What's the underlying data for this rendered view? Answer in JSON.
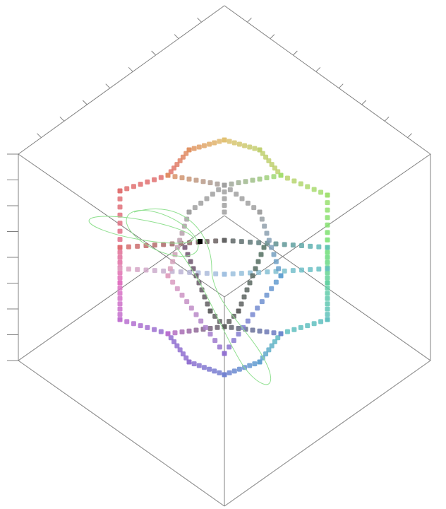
{
  "scene": {
    "kind": "3d-color-point-cloud",
    "background": "#ffffff",
    "frame_color": "#808080",
    "trajectory_color": "#90e090",
    "marker_color": "#000000",
    "icons": {
      "marker": "black-square-marker",
      "trajectory": "green-loop-curve"
    },
    "points": {
      "outer_ring_colors": [
        "#e07070",
        "#e09060",
        "#e0c070",
        "#c0d070",
        "#a0e070",
        "#70e070",
        "#60d0a0",
        "#60c0c0",
        "#60a0d0",
        "#7080d0",
        "#9070d0",
        "#c070d0",
        "#e070c0",
        "#e07090"
      ],
      "inner_colors": {
        "gray": "#a0a0a0",
        "dark_gray": "#606060",
        "dark_purple": "#705070",
        "dark_teal": "#507060",
        "light_blue": "#a0c0e0",
        "pink": "#e0a0c0"
      }
    }
  }
}
